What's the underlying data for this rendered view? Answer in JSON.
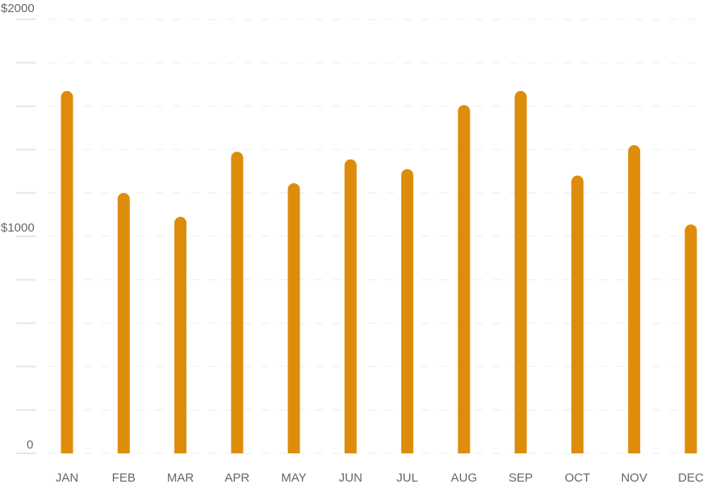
{
  "chart_data": {
    "type": "bar",
    "title": "",
    "xlabel": "",
    "ylabel": "",
    "categories": [
      "JAN",
      "FEB",
      "MAR",
      "APR",
      "MAY",
      "JUN",
      "JUL",
      "AUG",
      "SEP",
      "OCT",
      "NOV",
      "DEC"
    ],
    "values": [
      1670,
      1200,
      1090,
      1390,
      1245,
      1355,
      1310,
      1605,
      1670,
      1280,
      1420,
      1055
    ],
    "ylim": [
      0,
      2000
    ],
    "y_tick_labels": [
      {
        "value": 0,
        "label": "0"
      },
      {
        "value": 1000,
        "label": "$1000"
      },
      {
        "value": 2000,
        "label": "$2000"
      }
    ],
    "grid": true,
    "bar_color": "#de8c0c"
  }
}
